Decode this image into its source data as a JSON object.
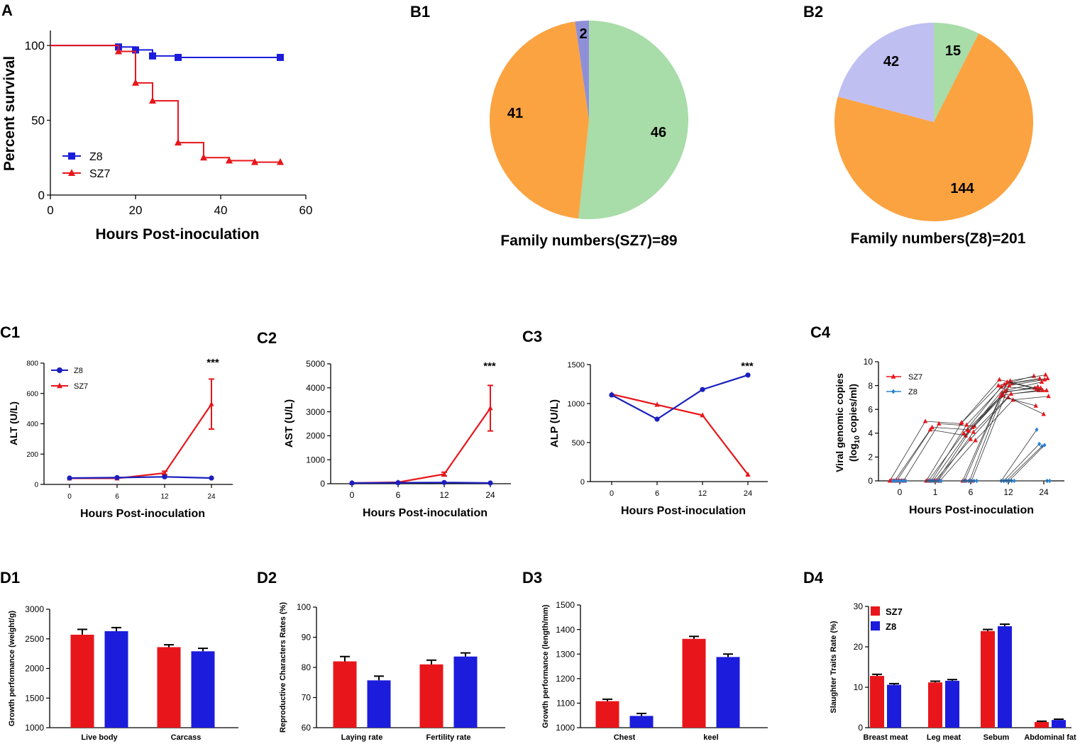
{
  "panel_labels": {
    "A": "A",
    "B1": "B1",
    "B2": "B2",
    "C1": "C1",
    "C2": "C2",
    "C3": "C3",
    "C4": "C4",
    "D1": "D1",
    "D2": "D2",
    "D3": "D3",
    "D4": "D4"
  },
  "colors": {
    "red": "#e8161b",
    "blue": "#1c1cdc",
    "navy": "#1a1fbd",
    "green": "#a8dca8",
    "orange": "#fba341",
    "lavender": "#bfbff2",
    "slate": "#8f8fd8",
    "lightblue": "#2b83d3",
    "black": "#000000"
  },
  "chart_data": [
    {
      "id": "A",
      "type": "line",
      "step": true,
      "xlabel": "Hours Post-inoculation",
      "ylabel": "Percent survival",
      "xlim": [
        0,
        60
      ],
      "ylim": [
        0,
        110
      ],
      "xticks": [
        0,
        20,
        40,
        60
      ],
      "yticks": [
        0,
        50,
        100
      ],
      "legend": "bottom-left",
      "series": [
        {
          "name": "Z8",
          "color": "blue",
          "marker": "square",
          "x": [
            0,
            16,
            20,
            24,
            30,
            54
          ],
          "y": [
            100,
            99,
            97,
            93,
            92,
            92
          ]
        },
        {
          "name": "SZ7",
          "color": "red",
          "marker": "triangle",
          "x": [
            16,
            20,
            24,
            30,
            36,
            42,
            48,
            54
          ],
          "y": [
            96,
            75,
            63,
            35,
            25,
            23,
            22,
            22
          ]
        }
      ]
    },
    {
      "id": "B1",
      "type": "pie",
      "title": "Family numbers(SZ7)=89",
      "slices": [
        {
          "value": 46,
          "label": "46",
          "color": "green"
        },
        {
          "value": 41,
          "label": "41",
          "color": "orange"
        },
        {
          "value": 2,
          "label": "2",
          "color": "slate"
        }
      ]
    },
    {
      "id": "B2",
      "type": "pie",
      "title": "Family numbers(Z8)=201",
      "slices": [
        {
          "value": 15,
          "label": "15",
          "color": "green"
        },
        {
          "value": 144,
          "label": "144",
          "color": "orange"
        },
        {
          "value": 42,
          "label": "42",
          "color": "lavender"
        }
      ]
    },
    {
      "id": "C1",
      "type": "line",
      "xlabel": "Hours Post-inoculation",
      "ylabel": "ALT (U/L)",
      "categories": [
        "0",
        "6",
        "12",
        "24"
      ],
      "ylim": [
        0,
        800
      ],
      "yticks": [
        0,
        200,
        400,
        600,
        800
      ],
      "annotation": "***",
      "legend": "top-left",
      "series": [
        {
          "name": "Z8",
          "color": "navy",
          "marker": "circle",
          "values": [
            42,
            45,
            50,
            42
          ],
          "err": [
            0,
            0,
            0,
            0
          ]
        },
        {
          "name": "SZ7",
          "color": "red",
          "marker": "triangle",
          "values": [
            40,
            40,
            75,
            530
          ],
          "err": [
            0,
            0,
            12,
            165
          ]
        }
      ]
    },
    {
      "id": "C2",
      "type": "line",
      "xlabel": "Hours Post-inoculation",
      "ylabel": "AST (U/L)",
      "categories": [
        "0",
        "6",
        "12",
        "24"
      ],
      "ylim": [
        0,
        5000
      ],
      "yticks": [
        0,
        1000,
        2000,
        3000,
        4000,
        5000
      ],
      "annotation": "***",
      "series": [
        {
          "name": "Z8",
          "color": "navy",
          "marker": "circle",
          "values": [
            30,
            40,
            50,
            30
          ],
          "err": [
            0,
            0,
            0,
            0
          ]
        },
        {
          "name": "SZ7",
          "color": "red",
          "marker": "triangle",
          "values": [
            30,
            60,
            400,
            3150
          ],
          "err": [
            0,
            0,
            80,
            950
          ]
        }
      ]
    },
    {
      "id": "C3",
      "type": "line",
      "xlabel": "Hours Post-inoculation",
      "ylabel": "ALP (U/L)",
      "categories": [
        "0",
        "6",
        "12",
        "24"
      ],
      "ylim": [
        0,
        1500
      ],
      "yticks": [
        0,
        500,
        1000,
        1500
      ],
      "annotation": "***",
      "series": [
        {
          "name": "Z8",
          "color": "navy",
          "marker": "circle",
          "values": [
            1110,
            800,
            1180,
            1365
          ],
          "err": [
            0,
            0,
            0,
            0
          ]
        },
        {
          "name": "SZ7",
          "color": "red",
          "marker": "triangle",
          "values": [
            1120,
            985,
            850,
            90
          ],
          "err": [
            0,
            0,
            0,
            0
          ]
        }
      ]
    },
    {
      "id": "C4",
      "type": "scatter",
      "xlabel": "Hours Post-inoculation",
      "ylabel_line1": "Viral genomic copies",
      "ylabel_line2_pre": "(log",
      "ylabel_sub": "10",
      "ylabel_line2_post": " copies/ml)",
      "categories": [
        "0",
        "1",
        "6",
        "12",
        "24"
      ],
      "ylim": [
        0,
        10
      ],
      "yticks": [
        0,
        2,
        4,
        6,
        8,
        10
      ],
      "legend": "top-left",
      "series": [
        {
          "name": "SZ7",
          "color": "red",
          "marker": "triangle",
          "tracks": [
            [
              0,
              5.0,
              4.8,
              8.0,
              8.8
            ],
            [
              0,
              4.5,
              4.3,
              7.5,
              7.8
            ],
            [
              0,
              4.8,
              4.6,
              8.2,
              8.6
            ],
            [
              0,
              4.3,
              3.8,
              7.2,
              7.6
            ],
            [
              0,
              0,
              4.5,
              8.4,
              8.9
            ],
            [
              0,
              0,
              4.0,
              7.9,
              7.7
            ],
            [
              0,
              0,
              3.5,
              7.0,
              5.6
            ],
            [
              0,
              0,
              4.9,
              8.5,
              7.8
            ],
            [
              0,
              0,
              4.2,
              7.6,
              8.3
            ],
            [
              0,
              0,
              3.4,
              6.8,
              7.1
            ],
            [
              0,
              0,
              4.7,
              8.1,
              8.6
            ],
            [
              0,
              0,
              4.1,
              7.3,
              7.6
            ],
            [
              0,
              0,
              0,
              7.4,
              7.9
            ],
            [
              0,
              0,
              0,
              8.0,
              8.5
            ],
            [
              0,
              0,
              0,
              7.1,
              6.3
            ],
            [
              0,
              0,
              0,
              8.3,
              7.6
            ]
          ]
        },
        {
          "name": "Z8",
          "color": "lightblue",
          "marker": "diamond",
          "tracks": [
            [
              0,
              0,
              0,
              0,
              4.3
            ],
            [
              0,
              0,
              0,
              0,
              3.1
            ],
            [
              0,
              0,
              0,
              0,
              2.9
            ],
            [
              0,
              0,
              0,
              0,
              3.0
            ],
            [
              0,
              0,
              0,
              0,
              0
            ],
            [
              0,
              0,
              0,
              0,
              0
            ]
          ]
        }
      ]
    },
    {
      "id": "D1",
      "type": "bar",
      "ylabel": "Growth performance (weight/g)",
      "categories": [
        "Live body",
        "Carcass"
      ],
      "ylim": [
        1000,
        3000
      ],
      "yticks": [
        1000,
        1500,
        2000,
        2500,
        3000
      ],
      "series": [
        {
          "name": "SZ7",
          "color": "red",
          "values": [
            2570,
            2360
          ],
          "err": [
            90,
            40
          ]
        },
        {
          "name": "Z8",
          "color": "blue",
          "values": [
            2630,
            2290
          ],
          "err": [
            60,
            50
          ]
        }
      ]
    },
    {
      "id": "D2",
      "type": "bar",
      "ylabel": "Reproductive Characters Rates (%)",
      "categories": [
        "Laying rate",
        "Fertility rate"
      ],
      "ylim": [
        60,
        100
      ],
      "yticks": [
        60,
        70,
        80,
        90,
        100
      ],
      "series": [
        {
          "name": "SZ7",
          "color": "red",
          "values": [
            82,
            81
          ],
          "err": [
            1.6,
            1.4
          ]
        },
        {
          "name": "Z8",
          "color": "blue",
          "values": [
            75.7,
            83.6
          ],
          "err": [
            1.4,
            1.2
          ]
        }
      ]
    },
    {
      "id": "D3",
      "type": "bar",
      "ylabel": "Growth performance (length/mm)",
      "categories": [
        "Chest",
        "keel"
      ],
      "ylim": [
        1000,
        1500
      ],
      "yticks": [
        1000,
        1100,
        1200,
        1300,
        1400,
        1500
      ],
      "series": [
        {
          "name": "SZ7",
          "color": "red",
          "values": [
            1108,
            1362
          ],
          "err": [
            8,
            10
          ]
        },
        {
          "name": "Z8",
          "color": "blue",
          "values": [
            1048,
            1288
          ],
          "err": [
            10,
            12
          ]
        }
      ]
    },
    {
      "id": "D4",
      "type": "bar",
      "ylabel": "Slaughter Traits Rate (%)",
      "categories": [
        "Breast meat",
        "Leg meat",
        "Sebum",
        "Abdominal fat"
      ],
      "ylim": [
        0,
        30
      ],
      "yticks": [
        0,
        10,
        20,
        30
      ],
      "legend": "top-left",
      "series": [
        {
          "name": "SZ7",
          "color": "red",
          "values": [
            12.8,
            11.2,
            23.9,
            1.4
          ],
          "err": [
            0.4,
            0.3,
            0.4,
            0.2
          ]
        },
        {
          "name": "Z8",
          "color": "blue",
          "values": [
            10.6,
            11.6,
            25.1,
            1.9
          ],
          "err": [
            0.3,
            0.3,
            0.5,
            0.2
          ]
        }
      ]
    }
  ]
}
